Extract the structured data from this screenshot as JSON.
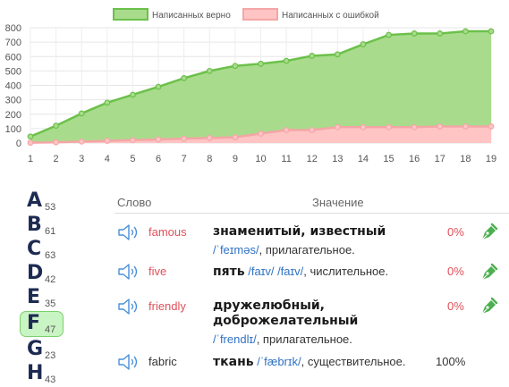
{
  "chart_data": {
    "type": "area",
    "x": [
      1,
      2,
      3,
      4,
      5,
      6,
      7,
      8,
      9,
      10,
      11,
      12,
      13,
      14,
      15,
      16,
      17,
      18,
      19
    ],
    "ylim": [
      0,
      800
    ],
    "yticks": [
      0,
      100,
      200,
      300,
      400,
      500,
      600,
      700,
      800
    ],
    "grid": true,
    "legend_position": "top-center",
    "series": [
      {
        "name": "Написанных верно",
        "color": "#6cc04a",
        "fill": "#a8dc8c",
        "values": [
          45,
          120,
          205,
          280,
          335,
          390,
          450,
          500,
          535,
          550,
          570,
          605,
          615,
          685,
          750,
          760,
          760,
          775,
          775
        ]
      },
      {
        "name": "Написанных с ошибкой",
        "color": "#f4a6a6",
        "fill": "#ffc4c4",
        "values": [
          2,
          5,
          10,
          15,
          20,
          25,
          30,
          35,
          40,
          65,
          90,
          90,
          110,
          110,
          110,
          110,
          115,
          115,
          115
        ]
      }
    ]
  },
  "alphabet": [
    {
      "letter": "A",
      "count": "53"
    },
    {
      "letter": "B",
      "count": "61"
    },
    {
      "letter": "C",
      "count": "63"
    },
    {
      "letter": "D",
      "count": "42"
    },
    {
      "letter": "E",
      "count": "35"
    },
    {
      "letter": "F",
      "count": "47",
      "active": true
    },
    {
      "letter": "G",
      "count": "23"
    },
    {
      "letter": "H",
      "count": "43"
    }
  ],
  "table": {
    "header_word": "Слово",
    "header_meaning": "Значение",
    "rows": [
      {
        "word": "famous",
        "translation": "знаменитый, известный",
        "ipa": "/ˈfeɪməs/",
        "pos": ", прилагательное.",
        "percent": "0%"
      },
      {
        "word": "five",
        "translation": "пять",
        "ipa": "/faɪv/ /faɪv/",
        "pos": ", числительное.",
        "percent": "0%"
      },
      {
        "word": "friendly",
        "translation": "дружелюбный,",
        "translation2": "доброжелательный",
        "ipa": "/ˈfrendlɪ/",
        "pos": ", прилагательное.",
        "percent": "0%"
      },
      {
        "word": "fabric",
        "translation": "ткань",
        "ipa": "/ˈfæbrɪk/",
        "pos": ", существительное.",
        "percent": "100%"
      }
    ]
  },
  "icons": {
    "speaker": "speaker-icon",
    "pen": "pen-edit-icon"
  }
}
